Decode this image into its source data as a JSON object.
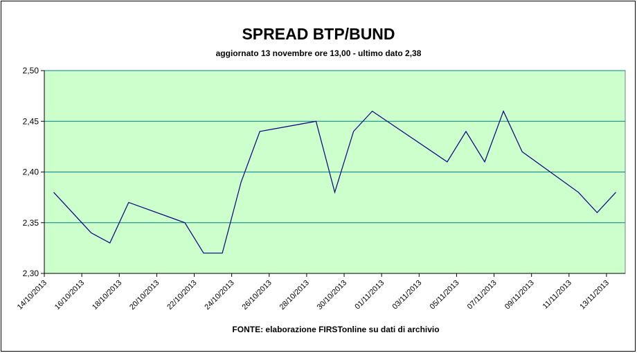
{
  "chart_data": {
    "type": "line",
    "title": "SPREAD BTP/BUND",
    "subtitle": "aggiornato 13 novembre ore 13,00 - ultimo dato 2,38",
    "note": "FONTE: elaborazione FIRSTonline su dati di archivio",
    "x": [
      "14/10/2013",
      "16/10/2013",
      "17/10/2013",
      "18/10/2013",
      "21/10/2013",
      "22/10/2013",
      "23/10/2013",
      "24/10/2013",
      "25/10/2013",
      "28/10/2013",
      "29/10/2013",
      "30/10/2013",
      "31/10/2013",
      "04/11/2013",
      "05/11/2013",
      "06/11/2013",
      "07/11/2013",
      "08/11/2013",
      "11/11/2013",
      "12/11/2013",
      "13/11/2013"
    ],
    "series": [
      {
        "name": "Spread",
        "color": "#000080",
        "values": [
          2.38,
          2.34,
          2.33,
          2.37,
          2.35,
          2.32,
          2.32,
          2.39,
          2.44,
          2.45,
          2.38,
          2.44,
          2.46,
          2.41,
          2.44,
          2.41,
          2.46,
          2.42,
          2.38,
          2.36,
          2.38
        ]
      }
    ],
    "xlim": [
      "14/10/2013",
      "13/11/2013"
    ],
    "xticks": [
      "14/10/2013",
      "16/10/2013",
      "18/10/2013",
      "20/10/2013",
      "22/10/2013",
      "24/10/2013",
      "26/10/2013",
      "28/10/2013",
      "30/10/2013",
      "01/11/2013",
      "03/11/2013",
      "05/11/2013",
      "07/11/2013",
      "09/11/2013",
      "11/11/2013",
      "13/11/2013"
    ],
    "ylim": [
      2.3,
      2.5
    ],
    "yticks": [
      {
        "value": 2.3,
        "label": "2,30"
      },
      {
        "value": 2.35,
        "label": "2,35"
      },
      {
        "value": 2.4,
        "label": "2,40"
      },
      {
        "value": 2.45,
        "label": "2,45"
      },
      {
        "value": 2.5,
        "label": "2,50"
      }
    ],
    "grid": true,
    "plot_background": "#ccffcc",
    "grid_color": "#008080"
  }
}
